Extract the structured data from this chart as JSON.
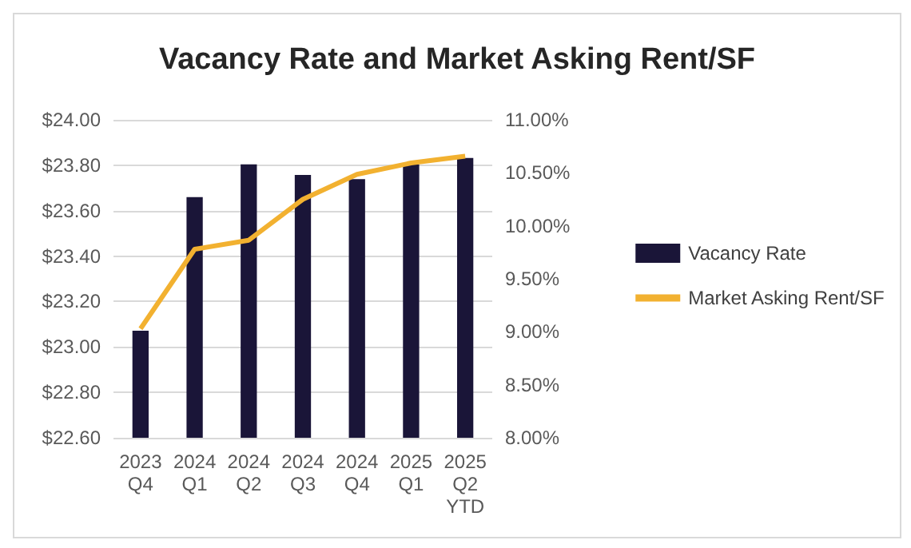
{
  "chart_data": {
    "type": "bar",
    "title": "Vacancy Rate and Market Asking Rent/SF",
    "categories": [
      "2023\nQ4",
      "2024\nQ1",
      "2024\nQ2",
      "2024\nQ3",
      "2024\nQ4",
      "2025\nQ1",
      "2025\nQ2\nYTD"
    ],
    "series": [
      {
        "name": "Vacancy Rate",
        "axis": "y2",
        "color": "#1a1538",
        "values": [
          9.01,
          10.27,
          10.58,
          10.48,
          10.44,
          10.58,
          10.64
        ]
      },
      {
        "name": "Market Asking Rent/SF",
        "type": "line",
        "axis": "y",
        "color": "#f2b130",
        "values": [
          23.08,
          23.43,
          23.47,
          23.65,
          23.76,
          23.81,
          23.84
        ]
      }
    ],
    "ylim": [
      22.6,
      24.0
    ],
    "yticks": [
      {
        "value": 22.6,
        "label": "$22.60"
      },
      {
        "value": 22.8,
        "label": "$22.80"
      },
      {
        "value": 23.0,
        "label": "$23.00"
      },
      {
        "value": 23.2,
        "label": "$23.20"
      },
      {
        "value": 23.4,
        "label": "$23.40"
      },
      {
        "value": 23.6,
        "label": "$23.60"
      },
      {
        "value": 23.8,
        "label": "$23.80"
      },
      {
        "value": 24.0,
        "label": "$24.00"
      }
    ],
    "y2lim": [
      8,
      11
    ],
    "y2ticks": [
      {
        "value": 8,
        "label": "8.00%"
      },
      {
        "value": 8.5,
        "label": "8.50%"
      },
      {
        "value": 9,
        "label": "9.00%"
      },
      {
        "value": 9.5,
        "label": "9.50%"
      },
      {
        "value": 10,
        "label": "10.00%"
      },
      {
        "value": 10.5,
        "label": "10.50%"
      },
      {
        "value": 11,
        "label": "11.00%"
      }
    ],
    "grid": "y",
    "legend": "right",
    "marker": "none"
  }
}
